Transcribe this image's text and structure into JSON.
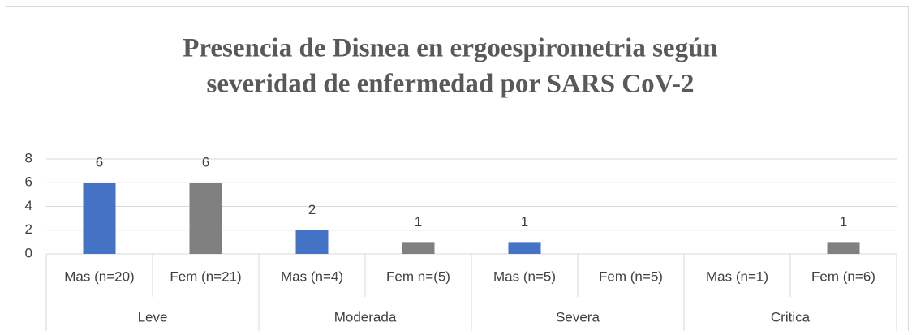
{
  "chart_data": {
    "type": "bar",
    "title_lines": [
      "Presencia de Disnea en ergoespirometria  según",
      "severidad de enfermedad por SARS CoV-2"
    ],
    "categories": [
      "Mas (n=20)",
      "Fem (n=21)",
      "Mas (n=4)",
      "Fem n=(5)",
      "Mas (n=5)",
      "Fem (n=5)",
      "Mas (n=1)",
      "Fem (n=6)"
    ],
    "group_categories": [
      "Leve",
      "Moderada",
      "Severa",
      "Critica"
    ],
    "values": [
      6,
      6,
      2,
      1,
      1,
      null,
      null,
      1
    ],
    "colors": [
      "#4472c4",
      "#808080",
      "#4472c4",
      "#808080",
      "#4472c4",
      "#808080",
      "#4472c4",
      "#808080"
    ],
    "ylim": [
      0,
      8
    ],
    "yticks": [
      0,
      2,
      4,
      6,
      8
    ],
    "grid": true
  }
}
